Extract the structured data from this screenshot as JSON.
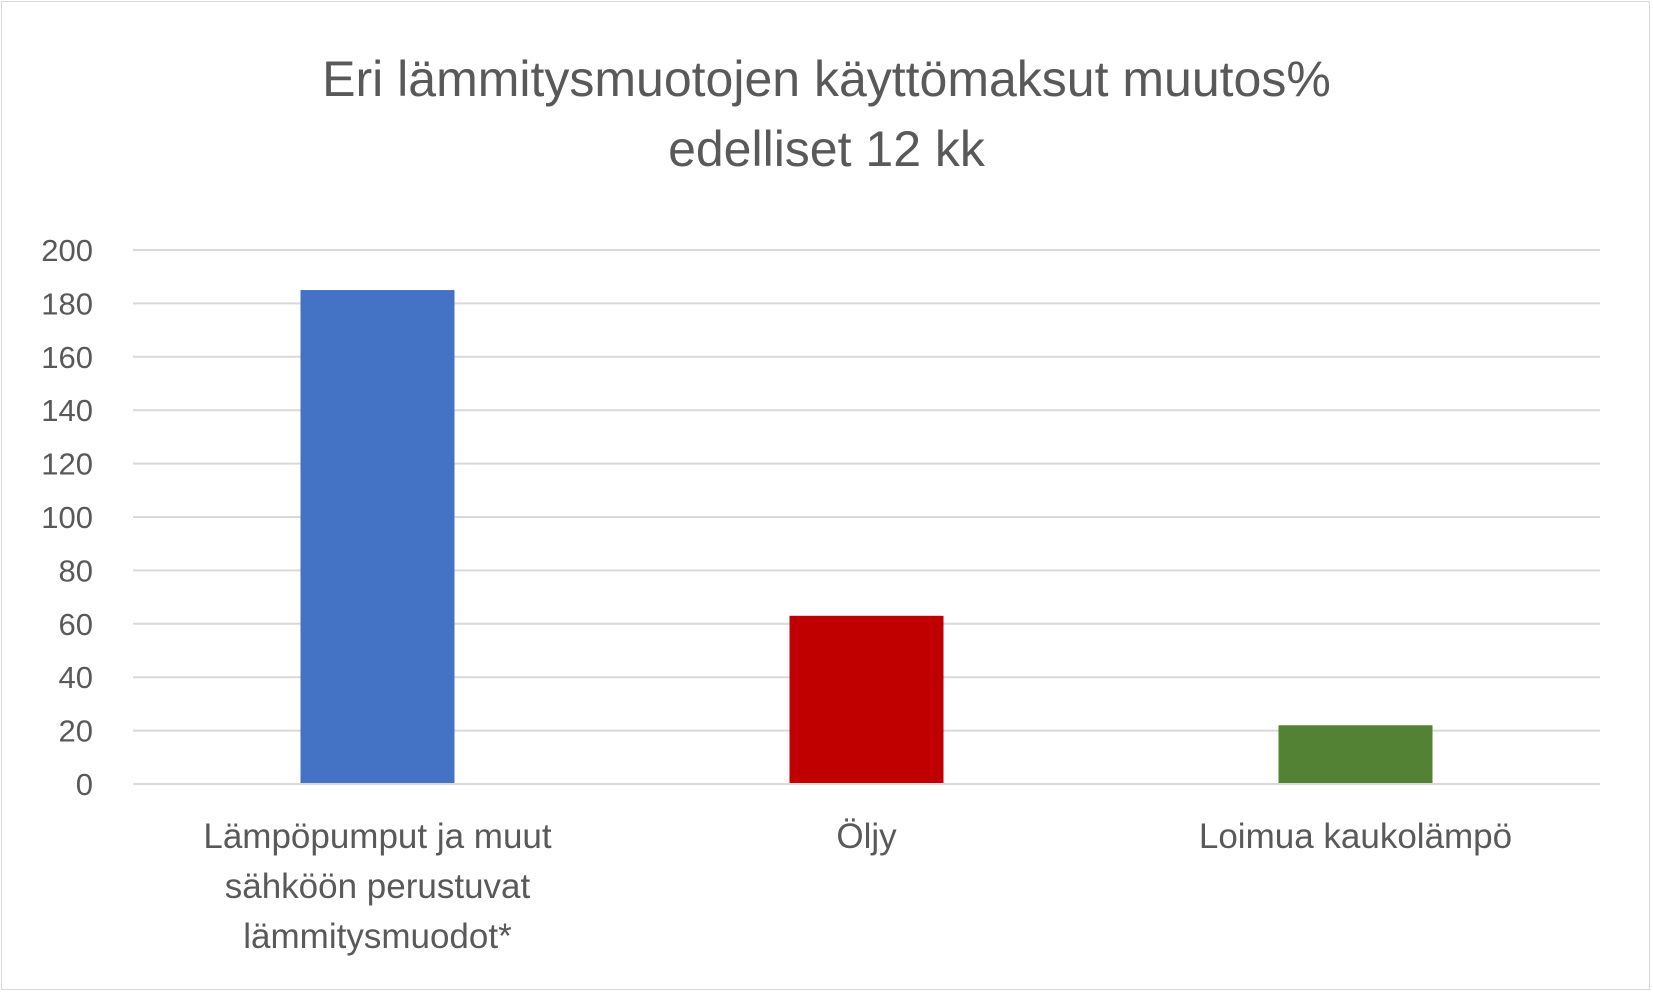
{
  "chart_data": {
    "type": "bar",
    "title_lines": [
      "Eri lämmitysmuotojen käyttömaksut muutos%",
      "edelliset 12 kk"
    ],
    "categories": [
      "Lämpöpumput ja muut sähköön perustuvat lämmitysmuodot*",
      "Öljy",
      "Loimua kaukolämpö"
    ],
    "category_label_lines": [
      [
        "Lämpöpumput ja muut",
        "sähköön perustuvat",
        "lämmitysmuodot*"
      ],
      [
        "Öljy"
      ],
      [
        "Loimua kaukolämpö"
      ]
    ],
    "values": [
      185,
      63,
      22
    ],
    "bar_colors": [
      "#4472c4",
      "#c00000",
      "#548235"
    ],
    "xlabel": "",
    "ylabel": "",
    "ylim": [
      0,
      200
    ],
    "yticks": [
      0,
      20,
      40,
      60,
      80,
      100,
      120,
      140,
      160,
      180,
      200
    ],
    "grid": true,
    "legend": "none"
  }
}
